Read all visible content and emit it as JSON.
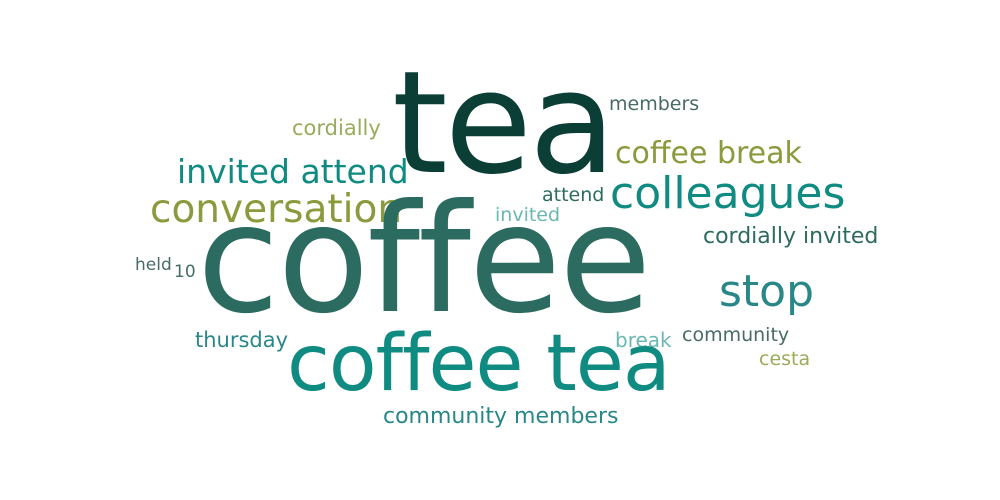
{
  "word_cloud": {
    "words": {
      "coffee": "coffee",
      "tea": "tea",
      "coffee_tea": "coffee tea",
      "colleagues": "colleagues",
      "conversation": "conversation",
      "invited_attend": "invited attend",
      "coffee_break": "coffee break",
      "stop": "stop",
      "cordially_invited": "cordially invited",
      "community_members": "community members",
      "members": "members",
      "cordially": "cordially",
      "attend": "attend",
      "invited": "invited",
      "held": "held",
      "ten": "10",
      "thursday": "thursday",
      "break": "break",
      "community": "community",
      "cesta": "cesta"
    },
    "colors": {
      "dark_green": "#0b3f36",
      "teal": "#0f8b82",
      "mid_green": "#2c6b5f",
      "olive": "#8b9a3c",
      "light_olive": "#9aab5a",
      "light_teal": "#6bb8b2",
      "slate": "#486b68",
      "blue_teal": "#2a8787",
      "background": "#ffffff"
    }
  }
}
